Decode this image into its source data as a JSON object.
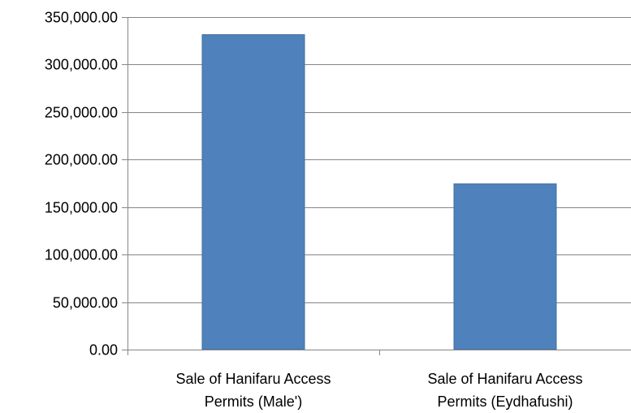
{
  "chart_data": {
    "type": "bar",
    "title": "",
    "xlabel": "",
    "ylabel": "",
    "categories": [
      [
        "Sale of Hanifaru Access",
        "Permits  (Male')"
      ],
      [
        "Sale of Hanifaru Access",
        "Permits (Eydhafushi)"
      ]
    ],
    "values": [
      331500,
      174500
    ],
    "ylim": [
      0,
      350000
    ],
    "yticks": [
      0,
      50000,
      100000,
      150000,
      200000,
      250000,
      300000,
      350000
    ],
    "ytick_labels": [
      "0.00",
      "50,000.00",
      "100,000.00",
      "150,000.00",
      "200,000.00",
      "250,000.00",
      "300,000.00",
      "350,000.00"
    ],
    "grid": true,
    "legend": "none",
    "colors": {
      "bar": "#4F81BD",
      "bar_edge": "#41719C",
      "grid": "#868686",
      "axis": "#868686",
      "text": "#000000"
    }
  }
}
